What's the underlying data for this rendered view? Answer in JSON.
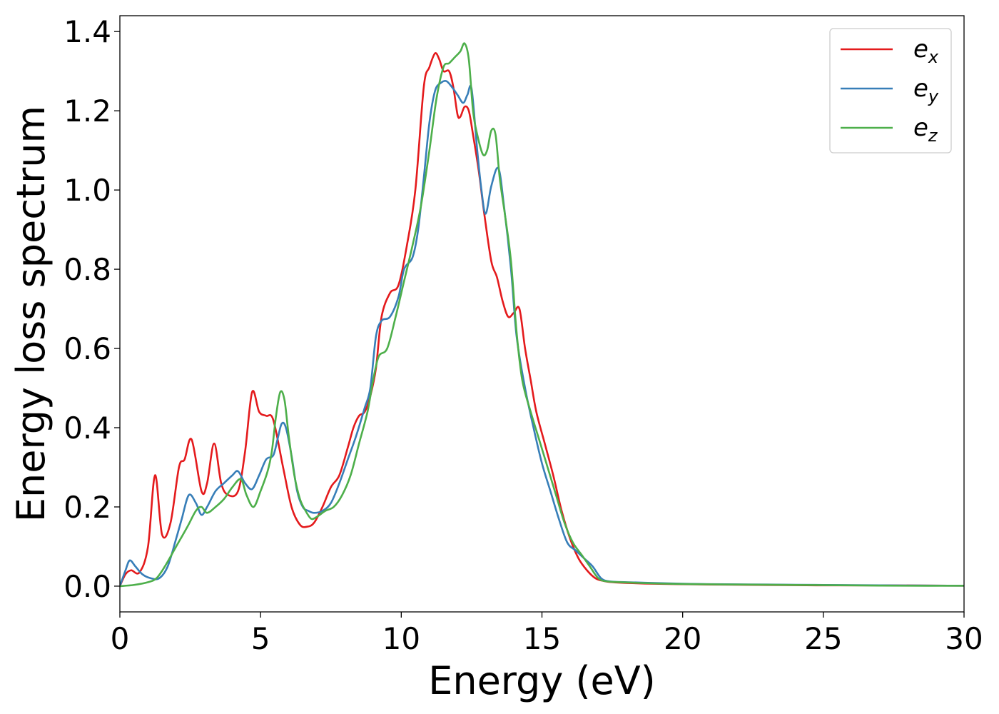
{
  "chart_data": {
    "type": "line",
    "xlabel": "Energy (eV)",
    "ylabel": "Energy loss spectrum",
    "xlim": [
      0,
      30
    ],
    "ylim": [
      -0.065,
      1.44
    ],
    "x_ticks": [
      0,
      5,
      10,
      15,
      20,
      25,
      30
    ],
    "x_tick_labels": [
      "0",
      "5",
      "10",
      "15",
      "20",
      "25",
      "30"
    ],
    "y_ticks": [
      0.0,
      0.2,
      0.4,
      0.6,
      0.8,
      1.0,
      1.2,
      1.4
    ],
    "y_tick_labels": [
      "0.0",
      "0.2",
      "0.4",
      "0.6",
      "0.8",
      "1.0",
      "1.2",
      "1.4"
    ],
    "grid": false,
    "legend_position": "top-right",
    "series": [
      {
        "base": "e",
        "sub": "x",
        "color": "#e41a1c",
        "x": [
          0,
          0.2,
          0.4,
          0.7,
          1.0,
          1.25,
          1.5,
          1.8,
          2.1,
          2.3,
          2.55,
          2.9,
          3.1,
          3.35,
          3.6,
          3.85,
          4.2,
          4.45,
          4.7,
          4.95,
          5.2,
          5.45,
          5.8,
          6.1,
          6.4,
          6.65,
          6.9,
          7.2,
          7.5,
          7.8,
          8.1,
          8.3,
          8.5,
          8.7,
          8.9,
          9.1,
          9.3,
          9.6,
          9.9,
          10.2,
          10.5,
          10.8,
          11.0,
          11.2,
          11.35,
          11.5,
          11.7,
          11.85,
          12.0,
          12.1,
          12.25,
          12.4,
          12.55,
          12.75,
          12.95,
          13.2,
          13.4,
          13.6,
          13.8,
          14.0,
          14.2,
          14.4,
          14.6,
          14.8,
          15.1,
          15.4,
          15.7,
          16.0,
          16.3,
          16.6,
          16.9,
          17.2,
          17.5,
          18.0,
          19.0,
          20.0,
          21.0,
          23.0,
          25.0,
          27.0,
          30.0
        ],
        "y": [
          0.0,
          0.03,
          0.04,
          0.035,
          0.1,
          0.28,
          0.13,
          0.16,
          0.3,
          0.32,
          0.37,
          0.24,
          0.26,
          0.36,
          0.26,
          0.23,
          0.24,
          0.34,
          0.49,
          0.44,
          0.43,
          0.42,
          0.3,
          0.2,
          0.155,
          0.15,
          0.16,
          0.2,
          0.25,
          0.28,
          0.35,
          0.4,
          0.43,
          0.44,
          0.48,
          0.55,
          0.68,
          0.74,
          0.76,
          0.86,
          1.0,
          1.26,
          1.31,
          1.345,
          1.33,
          1.3,
          1.3,
          1.26,
          1.19,
          1.185,
          1.21,
          1.2,
          1.14,
          1.05,
          0.94,
          0.82,
          0.78,
          0.72,
          0.68,
          0.69,
          0.7,
          0.6,
          0.52,
          0.44,
          0.36,
          0.28,
          0.19,
          0.12,
          0.07,
          0.04,
          0.02,
          0.013,
          0.01,
          0.008,
          0.006,
          0.005,
          0.004,
          0.003,
          0.002,
          0.002,
          0.001
        ]
      },
      {
        "base": "e",
        "sub": "y",
        "color": "#377eb8",
        "x": [
          0,
          0.2,
          0.35,
          0.55,
          0.8,
          1.1,
          1.4,
          1.7,
          2.0,
          2.2,
          2.45,
          2.7,
          2.9,
          3.1,
          3.4,
          3.7,
          4.0,
          4.2,
          4.45,
          4.7,
          4.95,
          5.2,
          5.45,
          5.6,
          5.75,
          5.9,
          6.1,
          6.3,
          6.5,
          6.7,
          6.9,
          7.2,
          7.5,
          7.8,
          8.1,
          8.4,
          8.7,
          8.9,
          9.1,
          9.3,
          9.6,
          9.9,
          10.1,
          10.4,
          10.6,
          10.8,
          11.0,
          11.2,
          11.4,
          11.6,
          11.8,
          12.0,
          12.2,
          12.35,
          12.5,
          12.7,
          12.85,
          13.0,
          13.2,
          13.45,
          13.65,
          13.9,
          14.1,
          14.4,
          14.7,
          15.0,
          15.3,
          15.6,
          15.9,
          16.2,
          16.5,
          16.8,
          17.1,
          17.4,
          18.0,
          19.0,
          20.0,
          21.0,
          23.0,
          25.0,
          27.0,
          30.0
        ],
        "y": [
          0.0,
          0.04,
          0.065,
          0.05,
          0.03,
          0.02,
          0.02,
          0.05,
          0.12,
          0.17,
          0.23,
          0.21,
          0.18,
          0.2,
          0.24,
          0.26,
          0.28,
          0.29,
          0.26,
          0.245,
          0.28,
          0.32,
          0.33,
          0.37,
          0.41,
          0.4,
          0.33,
          0.24,
          0.2,
          0.19,
          0.185,
          0.19,
          0.21,
          0.26,
          0.32,
          0.38,
          0.45,
          0.5,
          0.63,
          0.67,
          0.68,
          0.73,
          0.8,
          0.83,
          0.9,
          1.03,
          1.17,
          1.25,
          1.27,
          1.275,
          1.26,
          1.24,
          1.22,
          1.24,
          1.255,
          1.1,
          1.0,
          0.94,
          1.01,
          1.055,
          0.96,
          0.8,
          0.63,
          0.5,
          0.4,
          0.31,
          0.24,
          0.17,
          0.11,
          0.09,
          0.07,
          0.05,
          0.02,
          0.012,
          0.01,
          0.008,
          0.006,
          0.005,
          0.004,
          0.003,
          0.002,
          0.001
        ]
      },
      {
        "base": "e",
        "sub": "z",
        "color": "#4daf4a",
        "x": [
          0,
          0.5,
          1.0,
          1.3,
          1.6,
          2.0,
          2.4,
          2.7,
          2.9,
          3.1,
          3.4,
          3.7,
          4.0,
          4.3,
          4.5,
          4.75,
          5.0,
          5.25,
          5.4,
          5.55,
          5.7,
          5.85,
          6.0,
          6.2,
          6.4,
          6.6,
          6.8,
          7.0,
          7.3,
          7.6,
          7.9,
          8.2,
          8.5,
          8.8,
          9.0,
          9.2,
          9.5,
          9.8,
          10.1,
          10.4,
          10.7,
          11.0,
          11.25,
          11.5,
          11.7,
          11.9,
          12.1,
          12.25,
          12.4,
          12.55,
          12.7,
          12.9,
          13.05,
          13.2,
          13.35,
          13.5,
          13.7,
          13.9,
          14.1,
          14.3,
          14.6,
          14.9,
          15.2,
          15.5,
          15.8,
          16.1,
          16.4,
          16.7,
          17.0,
          17.3,
          17.8,
          18.5,
          19.5,
          20.5,
          22.0,
          24.0,
          26.0,
          28.0,
          30.0
        ],
        "y": [
          0.0,
          0.003,
          0.01,
          0.02,
          0.05,
          0.1,
          0.15,
          0.19,
          0.2,
          0.185,
          0.2,
          0.22,
          0.25,
          0.27,
          0.23,
          0.2,
          0.24,
          0.29,
          0.34,
          0.43,
          0.49,
          0.47,
          0.38,
          0.28,
          0.22,
          0.19,
          0.17,
          0.175,
          0.19,
          0.2,
          0.23,
          0.28,
          0.36,
          0.44,
          0.52,
          0.58,
          0.6,
          0.68,
          0.77,
          0.86,
          0.96,
          1.1,
          1.23,
          1.31,
          1.32,
          1.335,
          1.35,
          1.37,
          1.33,
          1.2,
          1.14,
          1.09,
          1.1,
          1.15,
          1.14,
          1.03,
          0.93,
          0.82,
          0.64,
          0.52,
          0.44,
          0.37,
          0.3,
          0.23,
          0.16,
          0.11,
          0.08,
          0.05,
          0.02,
          0.012,
          0.01,
          0.008,
          0.006,
          0.005,
          0.004,
          0.003,
          0.002,
          0.001,
          0.001
        ]
      }
    ]
  }
}
